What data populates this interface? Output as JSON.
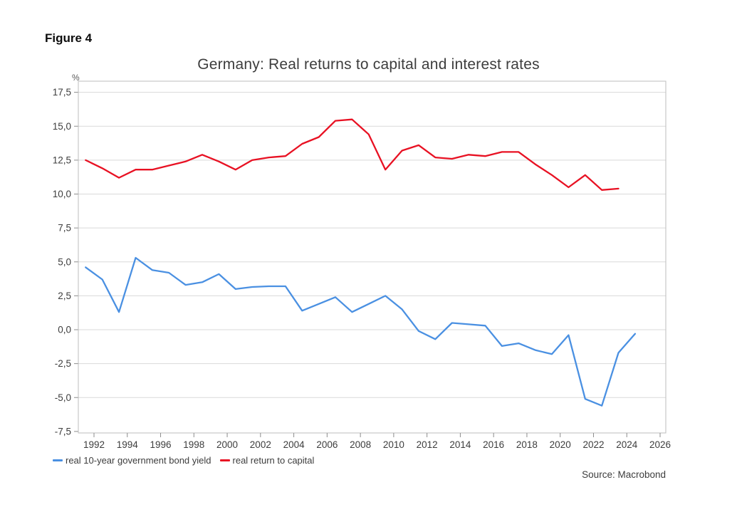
{
  "figure_label": "Figure 4",
  "chart": {
    "title": "Germany: Real returns to capital and interest rates",
    "y_unit_label": "%",
    "source": "Source: Macrobond"
  },
  "legend": [
    {
      "label": "real 10-year government bond yield",
      "color": "#4a90e2"
    },
    {
      "label": "real return to capital",
      "color": "#e81123"
    }
  ],
  "colors": {
    "bond_yield_line": "#4a90e2",
    "return_to_capital_line": "#e81123",
    "gridline": "#d9d9d9",
    "frame": "#bdbdbd",
    "tick": "#8c8c8c",
    "axis_text": "#3d3d3d"
  },
  "chart_data": {
    "type": "line",
    "title": "Germany: Real returns to capital and interest rates",
    "xlabel": "",
    "ylabel": "%",
    "x_axis": {
      "ticks": [
        1992,
        1994,
        1996,
        1998,
        2000,
        2002,
        2004,
        2006,
        2008,
        2010,
        2012,
        2014,
        2016,
        2018,
        2020,
        2022,
        2024,
        2026
      ],
      "range": [
        1991.0,
        2026.4
      ]
    },
    "y_axis": {
      "ticks": [
        -7.5,
        -5.0,
        -2.5,
        0.0,
        2.5,
        5.0,
        7.5,
        10.0,
        12.5,
        15.0,
        17.5
      ],
      "range": [
        -7.9,
        18.4
      ],
      "tick_format": "comma-decimal"
    },
    "grid": "horizontal",
    "legend_position": "bottom-left",
    "series": [
      {
        "name": "real 10-year government bond yield",
        "key": "bond-yield",
        "color": "#4a90e2",
        "start_year": 1991,
        "years": [
          1991,
          1992,
          1993,
          1994,
          1995,
          1996,
          1997,
          1998,
          1999,
          2000,
          2001,
          2002,
          2003,
          2004,
          2005,
          2006,
          2007,
          2008,
          2009,
          2010,
          2011,
          2012,
          2013,
          2014,
          2015,
          2016,
          2017,
          2018,
          2019,
          2020,
          2021,
          2022,
          2023,
          2024
        ],
        "values": [
          4.6,
          3.7,
          1.3,
          5.3,
          4.4,
          4.2,
          3.3,
          3.5,
          4.1,
          3.0,
          3.15,
          3.2,
          3.2,
          1.4,
          1.9,
          2.4,
          1.3,
          1.9,
          2.5,
          1.5,
          -0.1,
          -0.7,
          0.5,
          0.4,
          0.3,
          -1.2,
          -1.0,
          -1.5,
          -1.8,
          -0.4,
          -5.1,
          -5.6,
          -1.7,
          -0.3
        ]
      },
      {
        "name": "real return to capital",
        "key": "return-to-capital",
        "color": "#e81123",
        "start_year": 1991,
        "years": [
          1991,
          1992,
          1993,
          1994,
          1995,
          1996,
          1997,
          1998,
          1999,
          2000,
          2001,
          2002,
          2003,
          2004,
          2005,
          2006,
          2007,
          2008,
          2009,
          2010,
          2011,
          2012,
          2013,
          2014,
          2015,
          2016,
          2017,
          2018,
          2019,
          2020,
          2021,
          2022,
          2023
        ],
        "values": [
          12.5,
          11.9,
          11.2,
          11.8,
          11.8,
          12.1,
          12.4,
          12.9,
          12.4,
          11.8,
          12.5,
          12.7,
          12.8,
          13.7,
          14.2,
          15.4,
          15.5,
          14.4,
          11.8,
          13.2,
          13.6,
          12.7,
          12.6,
          12.9,
          12.8,
          13.1,
          13.1,
          12.2,
          11.4,
          10.5,
          11.4,
          10.3,
          10.4
        ]
      }
    ]
  }
}
